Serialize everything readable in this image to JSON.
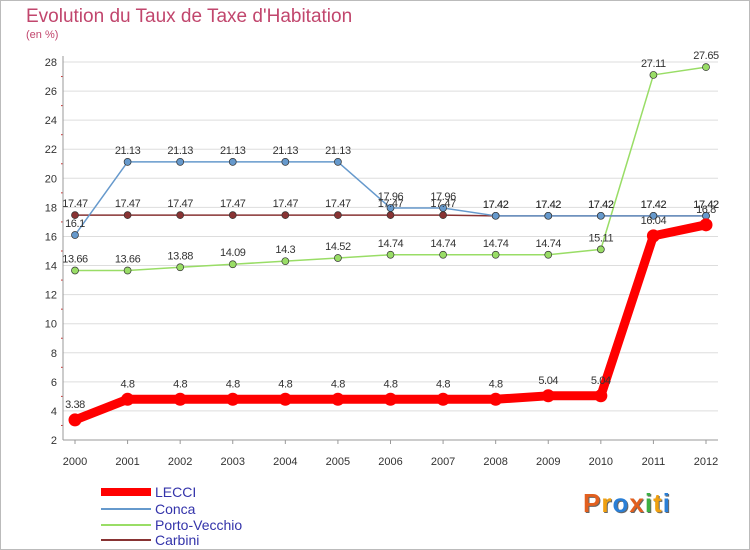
{
  "header": {
    "title": "Evolution du Taux de Taxe d'Habitation",
    "unit": "(en %)"
  },
  "logo": {
    "text": "Proxiti",
    "colors": [
      "#e2601f",
      "#f0a010",
      "#2a7fd6",
      "#e2601f",
      "#3cb043",
      "#f0a010",
      "#2a7fd6"
    ]
  },
  "chart_data": {
    "type": "line",
    "title": "Evolution du Taux de Taxe d'Habitation",
    "ylabel": "(en %)",
    "xlabel": "",
    "x": [
      "2000",
      "2001",
      "2002",
      "2003",
      "2004",
      "2005",
      "2006",
      "2007",
      "2008",
      "2009",
      "2010",
      "2011",
      "2012"
    ],
    "ylim": [
      2,
      28
    ],
    "yticks": [
      2,
      4,
      6,
      8,
      10,
      12,
      14,
      16,
      18,
      20,
      22,
      24,
      26,
      28
    ],
    "grid": "horizontal",
    "legend": "bottom-left",
    "series": [
      {
        "name": "LECCI",
        "color": "#ff0000",
        "values": [
          3.38,
          4.8,
          4.8,
          4.8,
          4.8,
          4.8,
          4.8,
          4.8,
          4.8,
          5.04,
          5.04,
          16.04,
          16.8
        ],
        "labels": [
          "3.38",
          "4.8",
          "4.8",
          "4.8",
          "4.8",
          "4.8",
          "4.8",
          "4.8",
          "4.8",
          "5.04",
          "5.04",
          "16.04",
          "16.8"
        ]
      },
      {
        "name": "Conca",
        "color": "#6699cc",
        "values": [
          16.1,
          21.13,
          21.13,
          21.13,
          21.13,
          21.13,
          17.96,
          17.96,
          17.42,
          17.42,
          17.42,
          17.42,
          17.42
        ],
        "labels": [
          "16.1",
          "21.13",
          "21.13",
          "21.13",
          "21.13",
          "21.13",
          "17.96",
          "17.96",
          "17.42",
          "17.42",
          "17.42",
          "17.42",
          "17.42"
        ]
      },
      {
        "name": "Porto-Vecchio",
        "color": "#99dd66",
        "values": [
          13.66,
          13.66,
          13.88,
          14.09,
          14.3,
          14.52,
          14.74,
          14.74,
          14.74,
          14.74,
          15.11,
          27.11,
          27.65
        ],
        "labels": [
          "13.66",
          "13.66",
          "13.88",
          "14.09",
          "14.3",
          "14.52",
          "14.74",
          "14.74",
          "14.74",
          "14.74",
          "15.11",
          "27.11",
          "27.65"
        ]
      },
      {
        "name": "Carbini",
        "color": "#883333",
        "values": [
          17.47,
          17.47,
          17.47,
          17.47,
          17.47,
          17.47,
          17.47,
          17.47,
          17.42,
          17.42,
          17.42,
          17.42,
          17.42
        ],
        "labels": [
          "17.47",
          "17.47",
          "17.47",
          "17.47",
          "17.47",
          "17.47",
          "17.47",
          "17.47",
          "17.42",
          "17.42",
          "17.42",
          "17.42",
          "17.42"
        ]
      }
    ]
  }
}
